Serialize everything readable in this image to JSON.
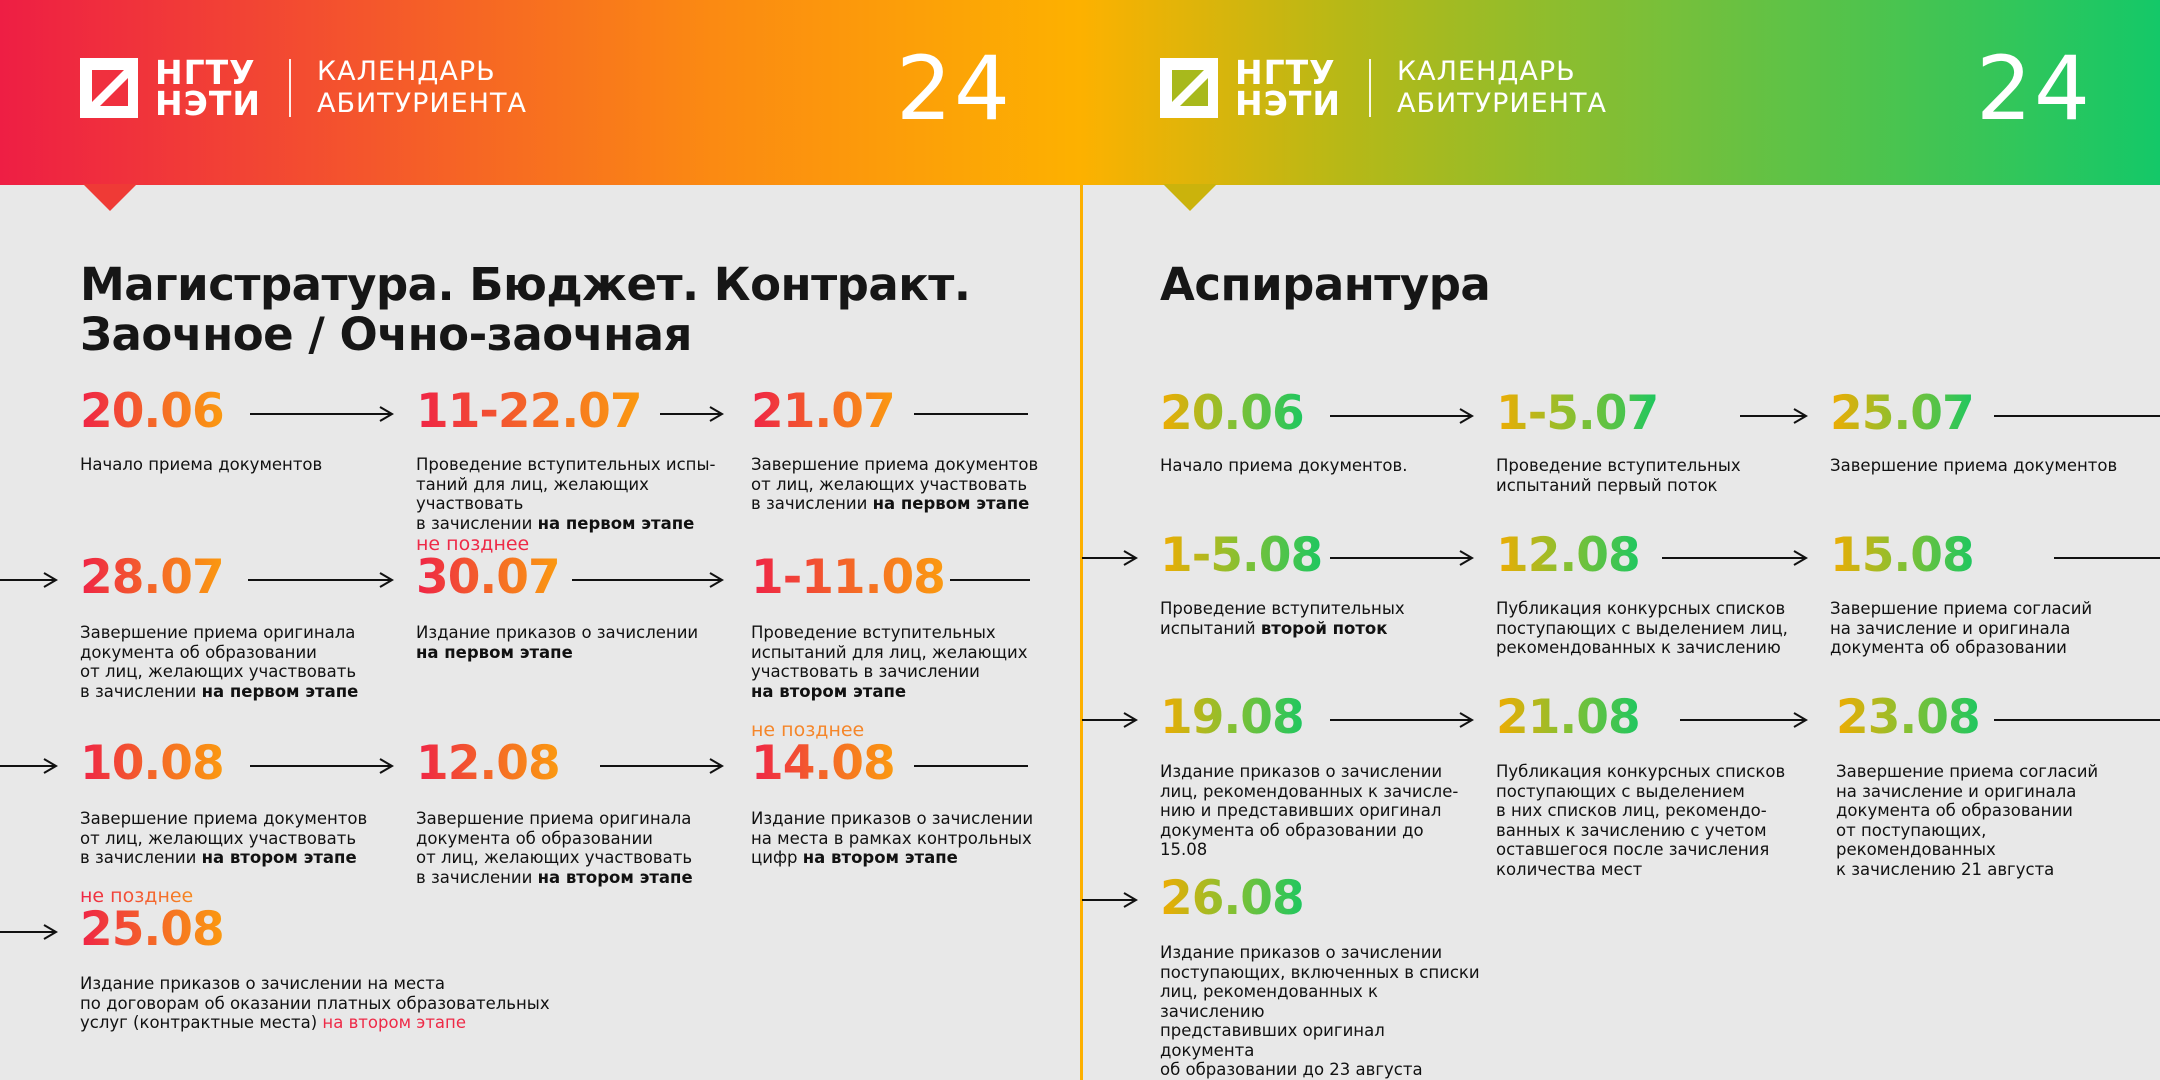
{
  "brand": {
    "logo_line1": "НГТУ",
    "logo_line2": "НЭТИ",
    "calendar_line1": "КАЛЕНДАРЬ",
    "calendar_line2": "АБИТУРИЕНТА",
    "year": "24"
  },
  "colors": {
    "warm_gradient": [
      "#ef2346",
      "#f46628",
      "#fb9a10"
    ],
    "cool_gradient": [
      "#f0ac02",
      "#8fbf2e",
      "#1ec760"
    ],
    "divider": "#fdb000",
    "accent_red": "#ee2a47"
  },
  "left": {
    "title_line1": "Магистратура. Бюджет. Контракт.",
    "title_line2": "Заочное /  Очно-заочная",
    "items": [
      {
        "date": "20.06",
        "desc": "Начало приема документов"
      },
      {
        "date": "11-22.07",
        "desc_1": "Проведение вступительных испы-",
        "desc_2": "таний для лиц, желающих участвовать",
        "desc_3": "в зачислении ",
        "emph": "на первом этапе"
      },
      {
        "date": "21.07",
        "desc_1": "Завершение приема документов",
        "desc_2": "от лиц, желающих участвовать",
        "desc_3": "в зачислении ",
        "emph": "на первом этапе"
      },
      {
        "date": "28.07",
        "desc_1": "Завершение приема оригинала",
        "desc_2": "документа об образовании",
        "desc_3": "от лиц, желающих участвовать",
        "desc_4": "в зачислении ",
        "emph": "на первом этапе"
      },
      {
        "note": "не позднее",
        "date": "30.07",
        "desc_1": "Издание приказов о зачислении",
        "emph": "на первом этапе"
      },
      {
        "date": "1-11.08",
        "desc_1": "Проведение вступительных",
        "desc_2": "испытаний для лиц, желающих",
        "desc_3": "участвовать в зачислении",
        "emph": "на втором этапе"
      },
      {
        "date": "10.08",
        "desc_1": "Завершение приема документов",
        "desc_2": "от лиц, желающих участвовать",
        "desc_3": "в зачислении ",
        "emph": "на втором этапе"
      },
      {
        "date": "12.08",
        "desc_1": "Завершение приема оригинала",
        "desc_2": "документа об образовании",
        "desc_3": "от лиц, желающих участвовать",
        "desc_4": "в зачислении ",
        "emph": "на втором этапе"
      },
      {
        "note": "не позднее",
        "date": "14.08",
        "desc_1": "Издание приказов о зачислении",
        "desc_2": "на места в рамках контрольных",
        "desc_3": "цифр ",
        "emph": "на втором этапе"
      },
      {
        "note": "не позднее",
        "date": "25.08",
        "desc_1": "Издание приказов о зачислении на места",
        "desc_2": "по договорам об оказании платных образовательных",
        "desc_3": "услуг (контрактные места) ",
        "emph": "на втором этапе"
      }
    ]
  },
  "right": {
    "title": "Аспирантура",
    "items": [
      {
        "date": "20.06",
        "desc": "Начало приема документов."
      },
      {
        "date": "1-5.07",
        "desc_1": "Проведение вступительных",
        "desc_2": "испытаний первый поток"
      },
      {
        "date": "25.07",
        "desc": "Завершение приема документов"
      },
      {
        "date": "1-5.08",
        "desc_1": "Проведение вступительных",
        "desc_2": "испытаний ",
        "emph": "второй поток"
      },
      {
        "date": "12.08",
        "desc_1": "Публикация конкурсных списков",
        "desc_2": "поступающих с выделением лиц,",
        "desc_3": "рекомендованных к зачислению"
      },
      {
        "date": "15.08",
        "desc_1": "Завершение приема согласий",
        "desc_2": "на зачисление и оригинала",
        "desc_3": "документа об образовании"
      },
      {
        "date": "19.08",
        "desc_1": "Издание приказов о зачислении",
        "desc_2": "лиц, рекомендованных к зачисле-",
        "desc_3": "нию и представивших оригинал",
        "desc_4": "документа об образовании до 15.08"
      },
      {
        "date": "21.08",
        "desc_1": "Публикация конкурсных списков",
        "desc_2": "поступающих с выделением",
        "desc_3": "в них списков лиц, рекомендо-",
        "desc_4": "ванных к зачислению с учетом",
        "desc_5": "оставшегося после зачисления",
        "desc_6": "количества мест"
      },
      {
        "date": "23.08",
        "desc_1": "Завершение приема согласий",
        "desc_2": "на зачисление и оригинала",
        "desc_3": "документа об образовании",
        "desc_4": "от поступающих, рекомендованных",
        "desc_5": "к зачислению 21 августа"
      },
      {
        "date": "26.08",
        "desc_1": "Издание приказов о зачислении",
        "desc_2": "поступающих, включенных в списки",
        "desc_3": "лиц, рекомендованных к зачислению",
        "desc_4": "представивших оригинал документа",
        "desc_5": "об образовании до 23 августа"
      }
    ]
  }
}
